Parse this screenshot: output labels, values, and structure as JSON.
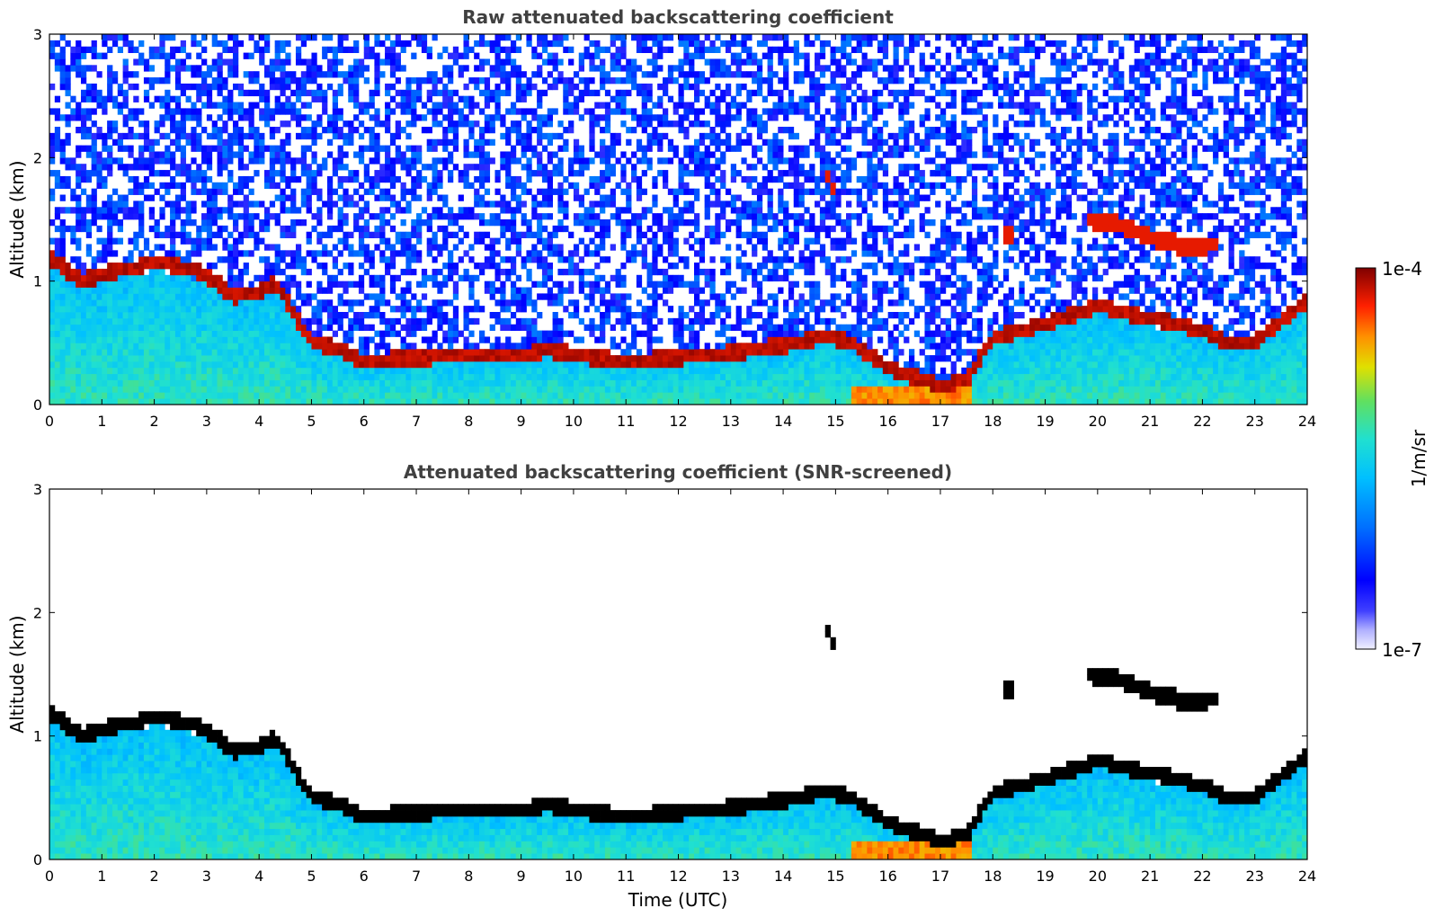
{
  "chart_data": [
    {
      "type": "heatmap",
      "title": "Raw attenuated backscattering coefficient",
      "xlabel": "",
      "ylabel": "Altitude (km)",
      "xlim": [
        0,
        24
      ],
      "ylim": [
        0,
        3
      ],
      "xticks": [
        "0",
        "1",
        "2",
        "3",
        "4",
        "5",
        "6",
        "7",
        "8",
        "9",
        "10",
        "11",
        "12",
        "13",
        "14",
        "15",
        "16",
        "17",
        "18",
        "19",
        "20",
        "21",
        "22",
        "23",
        "24"
      ],
      "yticks": [
        "0",
        "1",
        "2",
        "3"
      ],
      "noise": "high",
      "layer_profile": {
        "description_units": "time (UTC hours) vs altitude (km) of main aerosol/cloud layer",
        "time": [
          0,
          0.3,
          0.6,
          1.0,
          1.5,
          2.0,
          2.5,
          3.0,
          3.5,
          4.0,
          4.3,
          5.0,
          5.5,
          6.0,
          7.0,
          8.0,
          9.0,
          9.5,
          10.0,
          11.0,
          12.0,
          13.0,
          14.0,
          14.8,
          15.3,
          16.0,
          17.0,
          17.5,
          18.0,
          19.0,
          20.0,
          21.0,
          22.0,
          22.5,
          23.0,
          24.0
        ],
        "altitude": [
          1.2,
          1.1,
          1.0,
          1.05,
          1.1,
          1.15,
          1.12,
          1.05,
          0.88,
          0.9,
          1.0,
          0.5,
          0.45,
          0.35,
          0.38,
          0.4,
          0.4,
          0.45,
          0.4,
          0.35,
          0.38,
          0.42,
          0.48,
          0.55,
          0.5,
          0.3,
          0.15,
          0.2,
          0.55,
          0.65,
          0.8,
          0.7,
          0.6,
          0.5,
          0.5,
          0.85
        ]
      },
      "elevated_layers": [
        {
          "t0": 19.8,
          "t1": 22.3,
          "altitude": [
            1.5,
            1.45,
            1.35,
            1.28,
            1.3
          ]
        },
        {
          "t0": 18.2,
          "t1": 18.4,
          "altitude": [
            1.4,
            1.35
          ]
        },
        {
          "t0": 14.8,
          "t1": 15.0,
          "altitude": [
            1.9,
            1.7
          ]
        }
      ],
      "colorscale": {
        "label": "1/m/sr",
        "min_label": "1e-7",
        "max_label": "1e-4",
        "min": 1e-07,
        "max": 0.0001,
        "scale": "log"
      }
    },
    {
      "type": "heatmap",
      "title": "Attenuated backscattering coefficient (SNR-screened)",
      "xlabel": "Time (UTC)",
      "ylabel": "Altitude (km)",
      "xlim": [
        0,
        24
      ],
      "ylim": [
        0,
        3
      ],
      "xticks": [
        "0",
        "1",
        "2",
        "3",
        "4",
        "5",
        "6",
        "7",
        "8",
        "9",
        "10",
        "11",
        "12",
        "13",
        "14",
        "15",
        "16",
        "17",
        "18",
        "19",
        "20",
        "21",
        "22",
        "23",
        "24"
      ],
      "yticks": [
        "0",
        "1",
        "2",
        "3"
      ],
      "noise": "screened",
      "colorscale": {
        "label": "1/m/sr",
        "min_label": "1e-7",
        "max_label": "1e-4",
        "scale": "log"
      }
    }
  ],
  "colors": {
    "title_text": "#404040",
    "axis": "#000000",
    "palette": [
      "#f0f0ff",
      "#0000ff",
      "#0090ff",
      "#20e0e0",
      "#40e080",
      "#e0e000",
      "#ff8000",
      "#ff0000",
      "#800000"
    ]
  }
}
